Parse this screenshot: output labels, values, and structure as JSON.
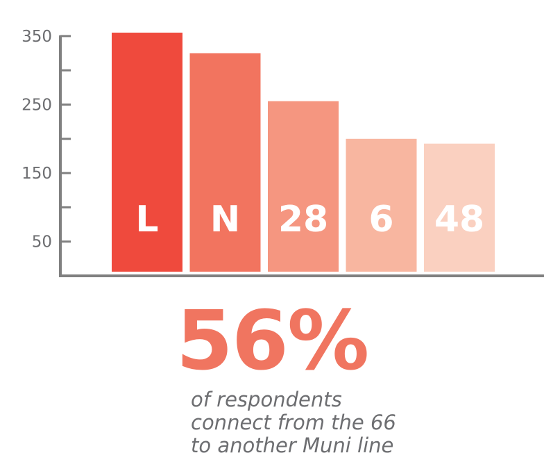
{
  "chart_data": {
    "type": "bar",
    "categories": [
      "L",
      "N",
      "28",
      "6",
      "48"
    ],
    "values": [
      355,
      325,
      255,
      200,
      193
    ],
    "ylim": [
      0,
      350
    ],
    "yticks_labeled": [
      50,
      150,
      250,
      350
    ],
    "yticks_minor": [
      100,
      200,
      300
    ],
    "colors": [
      "#ef4a3d",
      "#f2745f",
      "#f59680",
      "#f8b6a0",
      "#fad0c0"
    ],
    "axis_color": "#808080",
    "grid": false,
    "legend": "none"
  },
  "stat": {
    "value": "56%",
    "caption_lines": [
      "of respondents",
      "connect from the 66",
      "to another Muni line"
    ],
    "color": "#f07560"
  }
}
